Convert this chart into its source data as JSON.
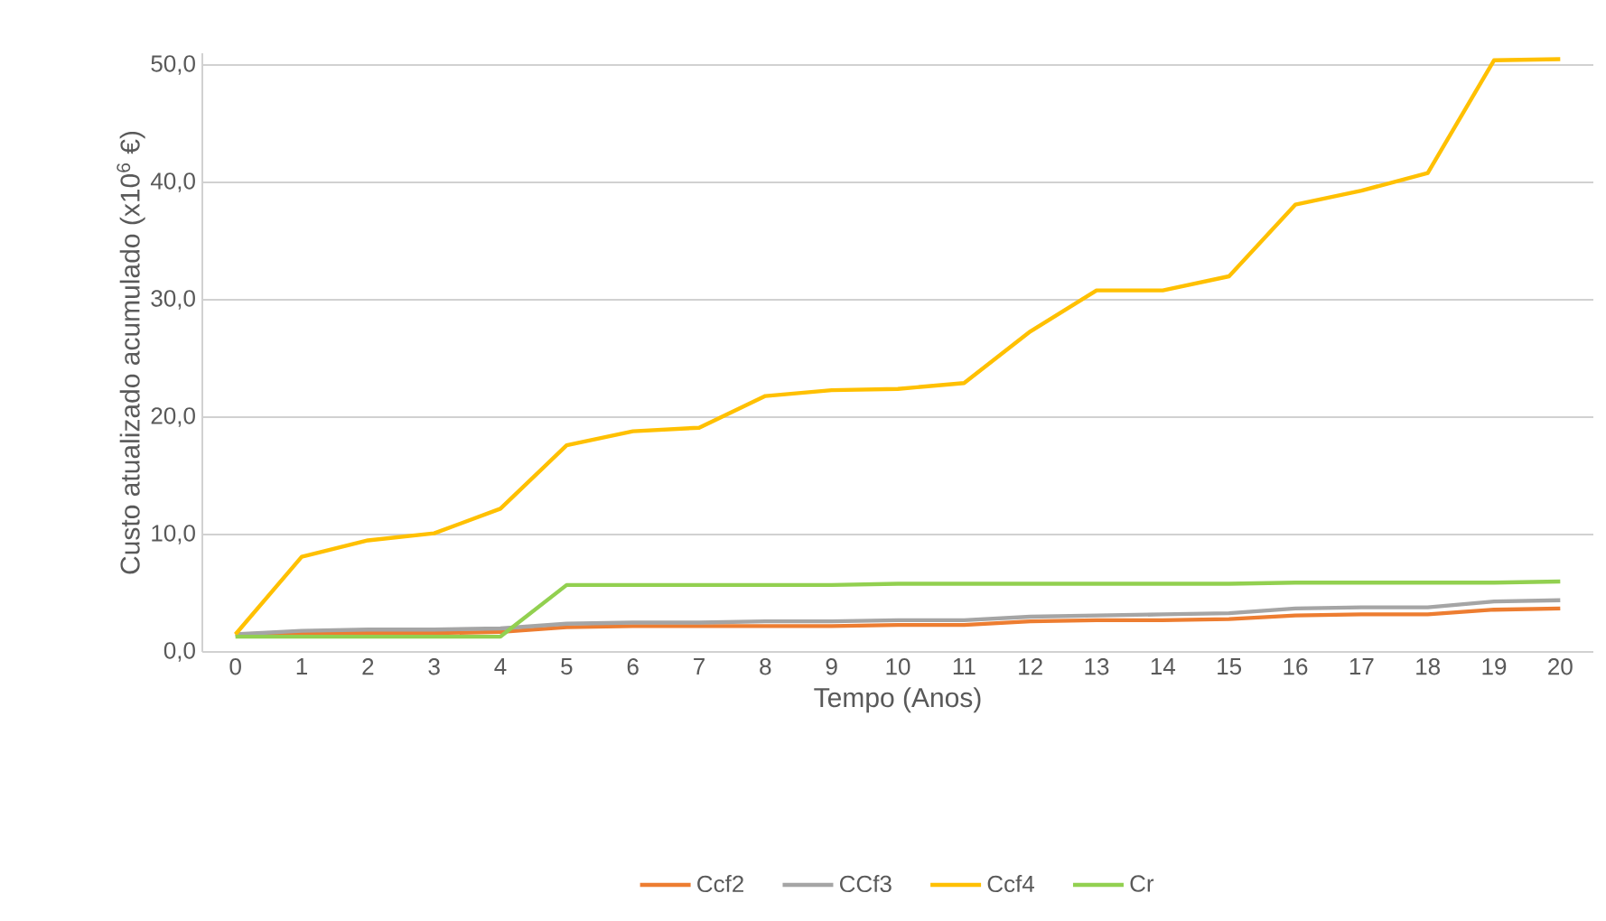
{
  "chart_data": {
    "type": "line",
    "xlabel": "Tempo (Anos)",
    "ylabel": "Custo atualizado acumulado (x10$^{6}$ €)",
    "categories": [
      "0",
      "1",
      "2",
      "3",
      "4",
      "5",
      "6",
      "7",
      "8",
      "9",
      "10",
      "11",
      "12",
      "13",
      "14",
      "15",
      "16",
      "17",
      "18",
      "19",
      "20"
    ],
    "series": [
      {
        "name": "Ccf2",
        "color": "#ed7d31",
        "values": [
          1.5,
          1.6,
          1.6,
          1.6,
          1.7,
          2.1,
          2.2,
          2.2,
          2.2,
          2.2,
          2.3,
          2.3,
          2.6,
          2.7,
          2.7,
          2.8,
          3.1,
          3.2,
          3.2,
          3.6,
          3.7
        ]
      },
      {
        "name": "CCf3",
        "color": "#a5a5a5",
        "values": [
          1.5,
          1.8,
          1.9,
          1.9,
          2.0,
          2.4,
          2.5,
          2.5,
          2.6,
          2.6,
          2.7,
          2.7,
          3.0,
          3.1,
          3.2,
          3.3,
          3.7,
          3.8,
          3.8,
          4.3,
          4.4
        ]
      },
      {
        "name": "Ccf4",
        "color": "#ffc000",
        "values": [
          1.5,
          8.1,
          9.5,
          10.1,
          12.2,
          17.6,
          18.8,
          19.1,
          21.8,
          22.3,
          22.4,
          22.9,
          27.3,
          30.8,
          30.8,
          32.0,
          38.1,
          39.3,
          40.8,
          50.4,
          50.5
        ]
      },
      {
        "name": "Cr",
        "color": "#92d050",
        "values": [
          1.3,
          1.3,
          1.3,
          1.3,
          1.3,
          5.7,
          5.7,
          5.7,
          5.7,
          5.7,
          5.8,
          5.8,
          5.8,
          5.8,
          5.8,
          5.8,
          5.9,
          5.9,
          5.9,
          5.9,
          6.0
        ]
      }
    ],
    "ylim": [
      0,
      51
    ],
    "yticks": [
      {
        "value": 0,
        "label": "0,0"
      },
      {
        "value": 10,
        "label": "10,0"
      },
      {
        "value": 20,
        "label": "20,0"
      },
      {
        "value": 30,
        "label": "30,0"
      },
      {
        "value": 40,
        "label": "40,0"
      },
      {
        "value": 50,
        "label": "50,0"
      }
    ],
    "grid": "y",
    "legend": "bottom",
    "marker": "none",
    "line_style": "solid"
  }
}
